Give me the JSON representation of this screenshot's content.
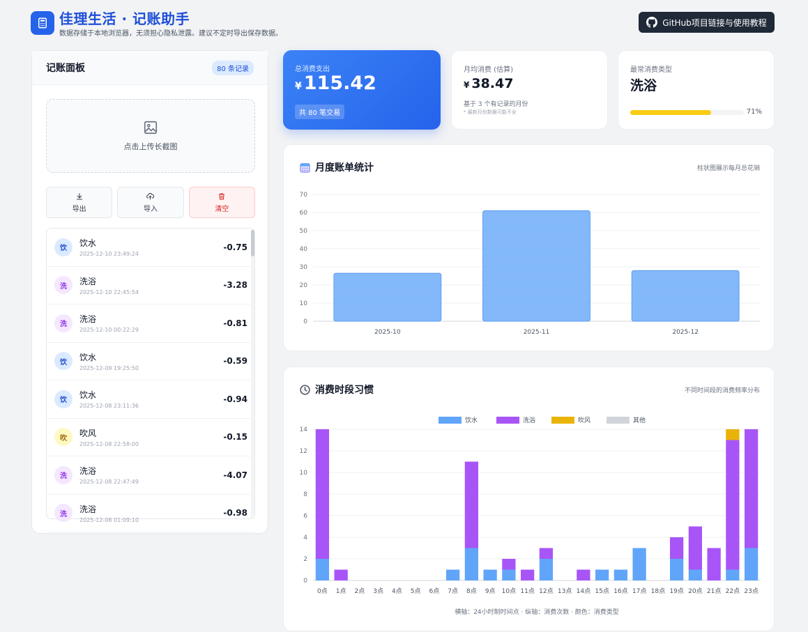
{
  "header": {
    "title": "佳理生活 · 记账助手",
    "subtitle": "数据存储于本地浏览器，无须担心隐私泄露。建议不定时导出保存数据。",
    "github_label": "GitHub项目链接与使用教程"
  },
  "panel": {
    "title": "记账面板",
    "badge": "80 条记录",
    "upload_label": "点击上传长截图",
    "export_label": "导出",
    "import_label": "导入",
    "clear_label": "清空"
  },
  "records": [
    {
      "avatar": "饮",
      "name": "饮水",
      "time": "2025-12-10 23:49:24",
      "amount": "-0.75",
      "type": "water"
    },
    {
      "avatar": "洗",
      "name": "洗浴",
      "time": "2025-12-10 22:45:54",
      "amount": "-3.28",
      "type": "bath"
    },
    {
      "avatar": "洗",
      "name": "洗浴",
      "time": "2025-12-10 00:22:29",
      "amount": "-0.81",
      "type": "bath"
    },
    {
      "avatar": "饮",
      "name": "饮水",
      "time": "2025-12-09 19:25:50",
      "amount": "-0.59",
      "type": "water"
    },
    {
      "avatar": "饮",
      "name": "饮水",
      "time": "2025-12-08 23:11:36",
      "amount": "-0.94",
      "type": "water"
    },
    {
      "avatar": "吹",
      "name": "吹风",
      "time": "2025-12-08 22:58:00",
      "amount": "-0.15",
      "type": "dryer"
    },
    {
      "avatar": "洗",
      "name": "洗浴",
      "time": "2025-12-08 22:47:49",
      "amount": "-4.07",
      "type": "bath"
    },
    {
      "avatar": "洗",
      "name": "洗浴",
      "time": "2025-12-08 01:09:10",
      "amount": "-0.98",
      "type": "bath"
    }
  ],
  "avatar_colors": {
    "water": {
      "bg": "#dbeafe",
      "fg": "#1d4ed8"
    },
    "bath": {
      "bg": "#f3e8ff",
      "fg": "#9333ea"
    },
    "dryer": {
      "bg": "#fef9c3",
      "fg": "#a16207"
    }
  },
  "stats": {
    "total_label": "总消费支出",
    "currency": "¥",
    "total_value": "115.42",
    "total_pill": "共 80 笔交易",
    "avg_label": "月均消费 (估算)",
    "avg_value": "38.47",
    "avg_note": "基于 3 个有记录的月份",
    "avg_note2": "* 最新月份数据可能不全",
    "top_label": "最常消费类型",
    "top_value": "洗浴",
    "top_pct": "71%",
    "top_fraction": 0.71
  },
  "colors": {
    "accent": "#2563eb",
    "water": "#60a5fa",
    "bath": "#a855f7",
    "dryer": "#eab308",
    "other": "#d1d5db"
  },
  "monthly": {
    "title": "月度账单统计",
    "hint": "柱状图展示每月总花销"
  },
  "hourly": {
    "title": "消费时段习惯",
    "hint": "不同时间段的消费频率分布",
    "caption": "横轴：24小时制时间点 · 纵轴：消费次数 · 颜色：消费类型"
  },
  "chart_data": [
    {
      "type": "bar",
      "categories": [
        "2025-10",
        "2025-11",
        "2025-12"
      ],
      "values": [
        26.5,
        61,
        28
      ],
      "ylim": [
        0,
        70
      ],
      "yticks": [
        0,
        10,
        20,
        30,
        40,
        50,
        60,
        70
      ],
      "grid": true,
      "color": "#60a5fa"
    },
    {
      "type": "bar",
      "stacked": true,
      "categories": [
        "0点",
        "1点",
        "2点",
        "3点",
        "4点",
        "5点",
        "6点",
        "7点",
        "8点",
        "9点",
        "10点",
        "11点",
        "12点",
        "13点",
        "14点",
        "15点",
        "16点",
        "17点",
        "18点",
        "19点",
        "20点",
        "21点",
        "22点",
        "23点"
      ],
      "series": [
        {
          "name": "饮水",
          "color": "#60a5fa",
          "values": [
            2,
            0,
            0,
            0,
            0,
            0,
            0,
            1,
            3,
            1,
            1,
            0,
            2,
            0,
            0,
            1,
            1,
            3,
            0,
            2,
            1,
            0,
            1,
            3
          ]
        },
        {
          "name": "洗浴",
          "color": "#a855f7",
          "values": [
            12,
            1,
            0,
            0,
            0,
            0,
            0,
            0,
            8,
            0,
            1,
            1,
            1,
            0,
            1,
            0,
            0,
            0,
            0,
            2,
            4,
            3,
            12,
            11
          ]
        },
        {
          "name": "吹风",
          "color": "#eab308",
          "values": [
            0,
            0,
            0,
            0,
            0,
            0,
            0,
            0,
            0,
            0,
            0,
            0,
            0,
            0,
            0,
            0,
            0,
            0,
            0,
            0,
            0,
            0,
            1,
            0
          ]
        },
        {
          "name": "其他",
          "color": "#d1d5db",
          "values": [
            0,
            0,
            0,
            0,
            0,
            0,
            0,
            0,
            0,
            0,
            0,
            0,
            0,
            0,
            0,
            0,
            0,
            0,
            0,
            0,
            0,
            0,
            0,
            0
          ]
        }
      ],
      "ylim": [
        0,
        14
      ],
      "yticks": [
        0,
        2,
        4,
        6,
        8,
        10,
        12,
        14
      ],
      "legend": "top-center",
      "grid": true
    }
  ]
}
